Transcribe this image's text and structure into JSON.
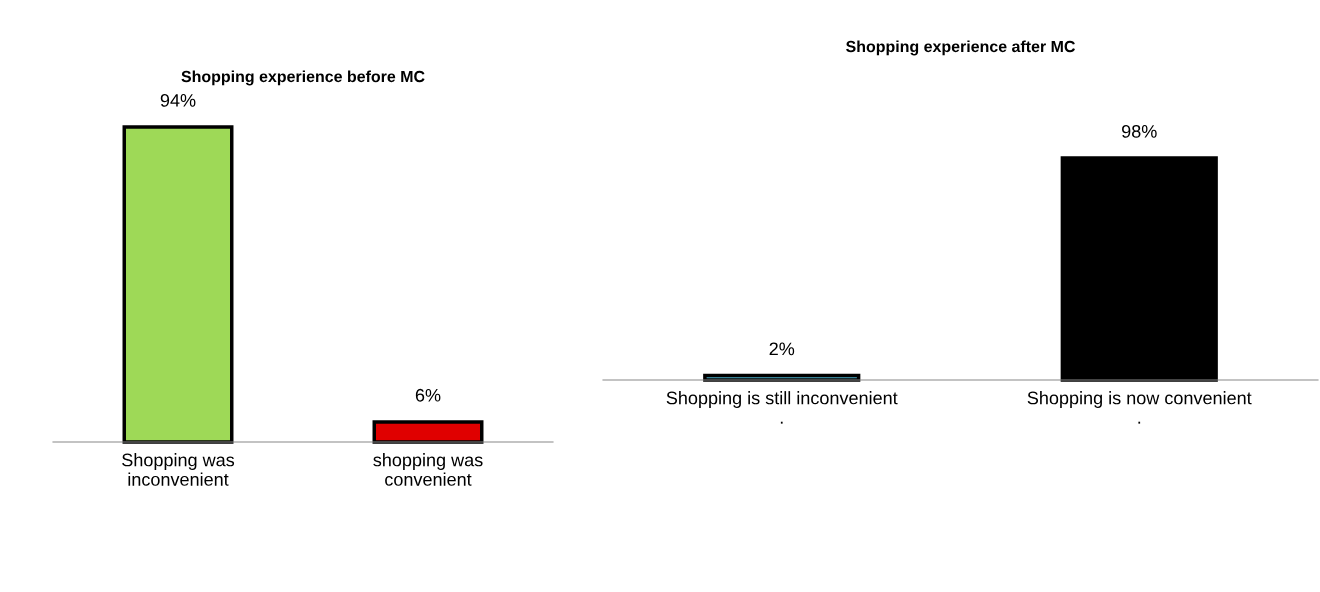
{
  "chart_data": [
    {
      "type": "bar",
      "title": "Shopping experience before MC",
      "categories": [
        "Shopping was\ninconvenient",
        "shopping was\nconvenient"
      ],
      "values": [
        94,
        6
      ],
      "value_labels": [
        "94%",
        "6%"
      ],
      "colors": [
        "#9ed957",
        "#e00000"
      ],
      "grid": false,
      "legend": false,
      "tick_labels": "x"
    },
    {
      "type": "bar",
      "title": "Shopping experience after MC",
      "categories": [
        "Shopping is still inconvenient\n.",
        "Shopping is now convenient\n."
      ],
      "values": [
        2,
        98
      ],
      "value_labels": [
        "2%",
        "98%"
      ],
      "colors": [
        "#4bacc6",
        "#000000"
      ],
      "grid": false,
      "legend": false,
      "tick_labels": "x"
    }
  ]
}
